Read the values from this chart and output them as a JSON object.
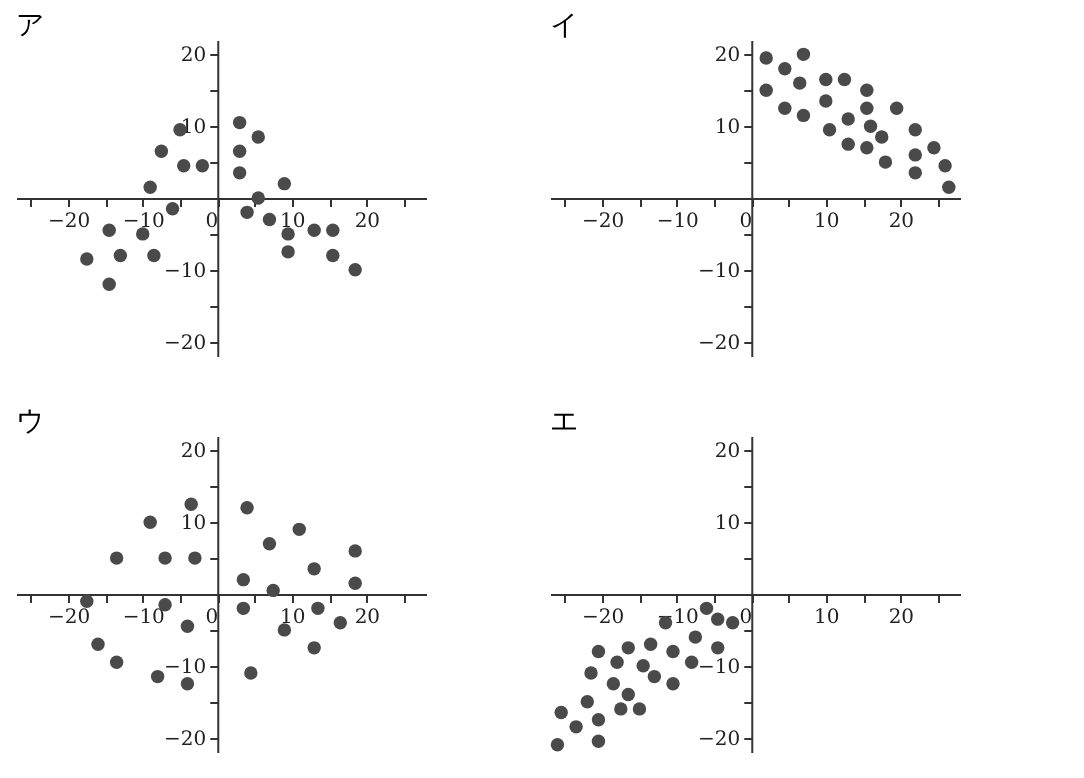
{
  "chart_data": [
    {
      "type": "scatter",
      "title": "ア",
      "marker": "circle",
      "color": "#4a4a4a",
      "xlim": [
        -27,
        28
      ],
      "ylim": [
        -22,
        22
      ],
      "xticks": [
        {
          "value": -25,
          "label": null
        },
        -20,
        {
          "value": -15,
          "label": null
        },
        -10,
        {
          "value": -5,
          "label": null
        },
        0,
        {
          "value": 5,
          "label": null
        },
        10,
        {
          "value": 15,
          "label": null
        },
        20,
        {
          "value": 25,
          "label": null
        }
      ],
      "yticks": [
        -20,
        {
          "value": -15,
          "label": null
        },
        -10,
        {
          "value": -5,
          "label": null
        },
        {
          "value": 5,
          "label": null
        },
        10,
        {
          "value": 15,
          "label": null
        },
        20
      ],
      "x": [
        -17.5,
        -14.5,
        -14.5,
        -13,
        -10,
        -9,
        -8.5,
        -7.5,
        -6,
        -5,
        -4.5,
        -2,
        3,
        3,
        3,
        5.5,
        4,
        5.5,
        7,
        9,
        9.5,
        9.5,
        13,
        15.5,
        15.5,
        18.5
      ],
      "values": [
        -8.5,
        -4.5,
        -12,
        -8,
        -5,
        1.5,
        -8,
        6.5,
        -1.5,
        9.5,
        4.5,
        4.5,
        10.5,
        6.5,
        3.5,
        8.5,
        -2,
        0,
        -3,
        2,
        -5,
        -7.5,
        -4.5,
        -4.5,
        -8,
        -10
      ]
    },
    {
      "type": "scatter",
      "title": "イ",
      "marker": "circle",
      "color": "#4a4a4a",
      "xlim": [
        -27,
        28
      ],
      "ylim": [
        -22,
        22
      ],
      "xticks": [
        {
          "value": -25,
          "label": null
        },
        -20,
        {
          "value": -15,
          "label": null
        },
        -10,
        {
          "value": -5,
          "label": null
        },
        0,
        {
          "value": 5,
          "label": null
        },
        10,
        {
          "value": 15,
          "label": null
        },
        20,
        {
          "value": 25,
          "label": null
        }
      ],
      "yticks": [
        -20,
        {
          "value": -15,
          "label": null
        },
        -10,
        {
          "value": -5,
          "label": null
        },
        {
          "value": 5,
          "label": null
        },
        10,
        {
          "value": 15,
          "label": null
        },
        20
      ],
      "x": [
        2,
        2,
        4.5,
        4.5,
        6.5,
        7,
        7,
        10,
        10,
        10.5,
        12.5,
        13,
        13,
        15.5,
        15.5,
        16,
        15.5,
        17.5,
        18,
        19.5,
        22,
        22,
        22,
        24.5,
        26,
        26.5
      ],
      "values": [
        19.5,
        15,
        18,
        12.5,
        16,
        20,
        11.5,
        16.5,
        13.5,
        9.5,
        16.5,
        11,
        7.5,
        15,
        12.5,
        10,
        7,
        8.5,
        5,
        12.5,
        9.5,
        6,
        3.5,
        7,
        4.5,
        1.5
      ]
    },
    {
      "type": "scatter",
      "title": "ウ",
      "marker": "circle",
      "color": "#4a4a4a",
      "xlim": [
        -27,
        28
      ],
      "ylim": [
        -22,
        22
      ],
      "xticks": [
        {
          "value": -25,
          "label": null
        },
        -20,
        {
          "value": -15,
          "label": null
        },
        -10,
        {
          "value": -5,
          "label": null
        },
        0,
        {
          "value": 5,
          "label": null
        },
        10,
        {
          "value": 15,
          "label": null
        },
        20,
        {
          "value": 25,
          "label": null
        }
      ],
      "yticks": [
        -20,
        {
          "value": -15,
          "label": null
        },
        -10,
        {
          "value": -5,
          "label": null
        },
        {
          "value": 5,
          "label": null
        },
        10,
        {
          "value": 15,
          "label": null
        },
        20
      ],
      "x": [
        -17.5,
        -16,
        -13.5,
        -13.5,
        -9,
        -8,
        -7,
        -7,
        -4,
        -4,
        -3.5,
        -3,
        3.5,
        3.5,
        4,
        4.5,
        7,
        7.5,
        9,
        11,
        13,
        13,
        13.5,
        16.5,
        18.5,
        18.5
      ],
      "values": [
        -1,
        -7,
        5,
        -9.5,
        10,
        -11.5,
        5,
        -1.5,
        -4.5,
        -12.5,
        12.5,
        5,
        2,
        -2,
        12,
        -11,
        7,
        0.5,
        -5,
        9,
        3.5,
        -7.5,
        -2,
        -4,
        6,
        1.5
      ]
    },
    {
      "type": "scatter",
      "title": "エ",
      "marker": "circle",
      "color": "#4a4a4a",
      "xlim": [
        -27,
        28
      ],
      "ylim": [
        -22,
        22
      ],
      "xticks": [
        {
          "value": -25,
          "label": null
        },
        -20,
        {
          "value": -15,
          "label": null
        },
        -10,
        {
          "value": -5,
          "label": null
        },
        0,
        {
          "value": 5,
          "label": null
        },
        10,
        {
          "value": 15,
          "label": null
        },
        20,
        {
          "value": 25,
          "label": null
        }
      ],
      "yticks": [
        -20,
        {
          "value": -15,
          "label": null
        },
        -10,
        {
          "value": -5,
          "label": null
        },
        {
          "value": 5,
          "label": null
        },
        10,
        {
          "value": 15,
          "label": null
        },
        20
      ],
      "x": [
        -26,
        -25.5,
        -23.5,
        -22,
        -21.5,
        -20.5,
        -20.5,
        -20.5,
        -18.5,
        -18,
        -17.5,
        -16.5,
        -16.5,
        -15,
        -14.5,
        -13.5,
        -13,
        -11.5,
        -10.5,
        -10.5,
        -8,
        -7.5,
        -6,
        -4.5,
        -4.5,
        -2.5
      ],
      "values": [
        -21,
        -16.5,
        -18.5,
        -15,
        -11,
        -8,
        -17.5,
        -20.5,
        -12.5,
        -9.5,
        -16,
        -7.5,
        -14,
        -16,
        -10,
        -7,
        -11.5,
        -4,
        -8,
        -12.5,
        -9.5,
        -6,
        -2,
        -3.5,
        -7.5,
        -4
      ]
    }
  ]
}
